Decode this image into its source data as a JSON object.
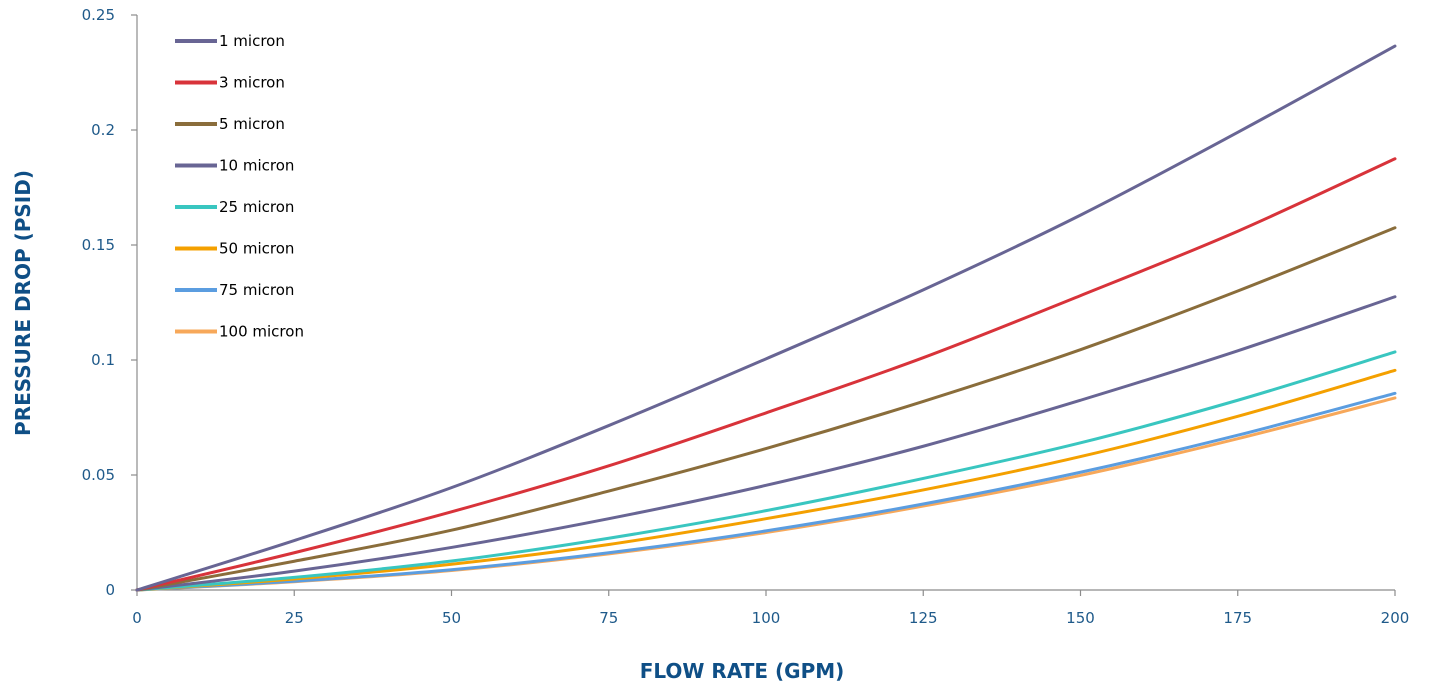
{
  "chart_data": {
    "type": "line",
    "title": "",
    "xlabel": "FLOW RATE (GPM)",
    "ylabel": "PRESSURE DROP (PSID)",
    "xlim": [
      0,
      200
    ],
    "ylim": [
      0,
      0.25
    ],
    "x_ticks": [
      "0",
      "25",
      "50",
      "75",
      "100",
      "125",
      "150",
      "175",
      "200"
    ],
    "y_ticks": [
      "0",
      "0.05",
      "0.1",
      "0.15",
      "0.2",
      "0.25"
    ],
    "grid": false,
    "legend_position": "top-left",
    "x": [
      0,
      25,
      50,
      75,
      100,
      125,
      150,
      175,
      200
    ],
    "series": [
      {
        "name": "1 micron",
        "color": "#686594",
        "values": [
          0,
          0.0215,
          0.0445,
          0.0715,
          0.1005,
          0.1305,
          0.163,
          0.199,
          0.2365
        ]
      },
      {
        "name": "3 micron",
        "color": "#d8333a",
        "values": [
          0,
          0.0162,
          0.034,
          0.054,
          0.077,
          0.101,
          0.128,
          0.156,
          0.1875
        ]
      },
      {
        "name": "5 micron",
        "color": "#8a6d3b",
        "values": [
          0,
          0.0125,
          0.026,
          0.043,
          0.0615,
          0.082,
          0.1045,
          0.13,
          0.1575
        ]
      },
      {
        "name": "10 micron",
        "color": "#686594",
        "values": [
          0,
          0.0082,
          0.0185,
          0.031,
          0.0455,
          0.0625,
          0.0825,
          0.104,
          0.1275
        ]
      },
      {
        "name": "25 micron",
        "color": "#39c6c0",
        "values": [
          0,
          0.0055,
          0.0126,
          0.0225,
          0.0345,
          0.0485,
          0.064,
          0.0825,
          0.1035
        ]
      },
      {
        "name": "50 micron",
        "color": "#f4a000",
        "values": [
          0,
          0.0048,
          0.0112,
          0.0198,
          0.031,
          0.0435,
          0.058,
          0.0755,
          0.0955
        ]
      },
      {
        "name": "75 micron",
        "color": "#5b9de0",
        "values": [
          0,
          0.0038,
          0.0088,
          0.0162,
          0.0257,
          0.0374,
          0.0512,
          0.0673,
          0.0855
        ]
      },
      {
        "name": "100 micron",
        "color": "#f7a85a",
        "values": [
          0,
          0.0036,
          0.0085,
          0.0157,
          0.025,
          0.0365,
          0.0498,
          0.0658,
          0.0835
        ]
      }
    ]
  }
}
